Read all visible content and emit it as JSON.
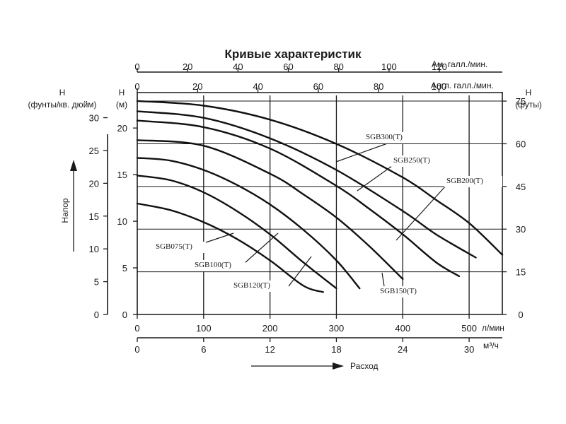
{
  "chart_data": {
    "type": "line",
    "title": "Кривые характеристик",
    "grid": true,
    "axes": {
      "flow_lpm": {
        "label": "л/мин",
        "range": [
          0,
          550
        ],
        "ticks": [
          "0",
          "100",
          "200",
          "300",
          "400",
          "500"
        ]
      },
      "flow_m3h": {
        "label": "м³/ч",
        "range": [
          0,
          33
        ],
        "ticks": [
          "0",
          "6",
          "12",
          "18",
          "24",
          "30"
        ]
      },
      "flow_label": "Расход",
      "us_gpm": {
        "label": "Ам. галл./мин.",
        "range": [
          0,
          145
        ],
        "ticks": [
          "0",
          "20",
          "40",
          "60",
          "80",
          "100",
          "120"
        ]
      },
      "imp_gpm": {
        "label": "Англ. галл./мин.",
        "range": [
          0,
          121
        ],
        "ticks": [
          "0",
          "20",
          "40",
          "60",
          "80",
          "100"
        ]
      },
      "head_m": {
        "label_top": "H",
        "label_bottom": "(м)",
        "range": [
          0,
          23.5
        ],
        "ticks": [
          "0",
          "5",
          "10",
          "15",
          "20"
        ]
      },
      "head_psi": {
        "label_top": "H",
        "label_bottom": "(фунты/кв. дюйм)",
        "range": [
          0,
          33.4
        ],
        "ticks": [
          "0",
          "5",
          "10",
          "15",
          "20",
          "25",
          "30"
        ]
      },
      "head_ft": {
        "label_top": "H",
        "label_bottom": "(футы)",
        "range": [
          0,
          77
        ],
        "ticks": [
          "0",
          "15",
          "30",
          "45",
          "60",
          "75"
        ]
      },
      "head_label": "Напор"
    },
    "series": [
      {
        "name": "SGB075(T)",
        "x_lpm": [
          0,
          50,
          100,
          150,
          200,
          250,
          280
        ],
        "y_m": [
          11.9,
          11.2,
          9.9,
          8.1,
          5.8,
          3.1,
          2.4
        ]
      },
      {
        "name": "SGB100(T)",
        "x_lpm": [
          0,
          50,
          100,
          150,
          200,
          250,
          300
        ],
        "y_m": [
          14.9,
          14.4,
          13.1,
          11.1,
          8.6,
          5.6,
          2.8
        ]
      },
      {
        "name": "SGB120(T)",
        "x_lpm": [
          0,
          50,
          100,
          150,
          200,
          250,
          300,
          335
        ],
        "y_m": [
          16.8,
          16.5,
          15.5,
          13.9,
          11.8,
          9.1,
          5.8,
          2.8
        ]
      },
      {
        "name": "SGB150(T)",
        "x_lpm": [
          0,
          100,
          200,
          250,
          300,
          350,
          400
        ],
        "y_m": [
          18.7,
          18.1,
          15.1,
          12.9,
          10.4,
          7.3,
          3.8
        ]
      },
      {
        "name": "SGB200(T)",
        "x_lpm": [
          0,
          100,
          200,
          300,
          350,
          400,
          450,
          485
        ],
        "y_m": [
          20.8,
          20.1,
          17.8,
          13.8,
          11.3,
          8.6,
          5.6,
          4.1
        ]
      },
      {
        "name": "SGB250(T)",
        "x_lpm": [
          0,
          100,
          200,
          300,
          400,
          450,
          510
        ],
        "y_m": [
          21.8,
          21.1,
          18.9,
          15.5,
          11.1,
          8.6,
          6.1
        ]
      },
      {
        "name": "SGB300(T)",
        "x_lpm": [
          0,
          100,
          200,
          300,
          400,
          450,
          500,
          550
        ],
        "y_m": [
          22.9,
          22.4,
          20.9,
          18.3,
          14.7,
          12.3,
          9.8,
          6.4
        ]
      }
    ]
  }
}
